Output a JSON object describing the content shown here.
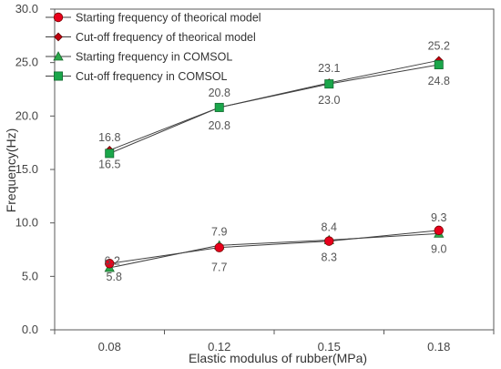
{
  "chart_data": {
    "type": "line",
    "categories": [
      "0.08",
      "0.12",
      "0.15",
      "0.18"
    ],
    "xlabel": "Elastic modulus of rubber(MPa)",
    "ylabel": "Frequency(Hz)",
    "ylim": [
      0,
      30
    ],
    "yticks": [
      "0.0",
      "5.0",
      "10.0",
      "15.0",
      "20.0",
      "25.0",
      "30.0"
    ],
    "grid": false,
    "legend_position": "top-left",
    "series": [
      {
        "name": "Starting frequency of theorical model",
        "marker": "circle",
        "color": "#e8001c",
        "values": [
          6.2,
          7.7,
          8.3,
          9.3
        ],
        "labels": [
          "6.2",
          "",
          "",
          "9.3"
        ]
      },
      {
        "name": "Cut-off frequency of theorical model",
        "marker": "diamond",
        "color": "#c0000e",
        "values": [
          16.8,
          20.8,
          23.1,
          25.2
        ],
        "labels": [
          "16.8",
          "20.8",
          "23.1",
          "25.2"
        ]
      },
      {
        "name": "Starting frequency in COMSOL",
        "marker": "triangle",
        "color": "#2aa84a",
        "values": [
          5.8,
          7.9,
          8.4,
          9.0
        ],
        "labels": [
          "5.8",
          "7.9",
          "8.4",
          "9.0"
        ]
      },
      {
        "name": "Cut-off frequency in COMSOL",
        "marker": "square",
        "color": "#1aa64a",
        "values": [
          16.5,
          20.8,
          23.0,
          24.8
        ],
        "labels": [
          "16.5",
          "20.8",
          "23.0",
          "24.8"
        ]
      }
    ],
    "extra_labels": [
      {
        "category": "0.12",
        "text": "7.7"
      },
      {
        "category": "0.15",
        "text": "8.3"
      }
    ]
  }
}
